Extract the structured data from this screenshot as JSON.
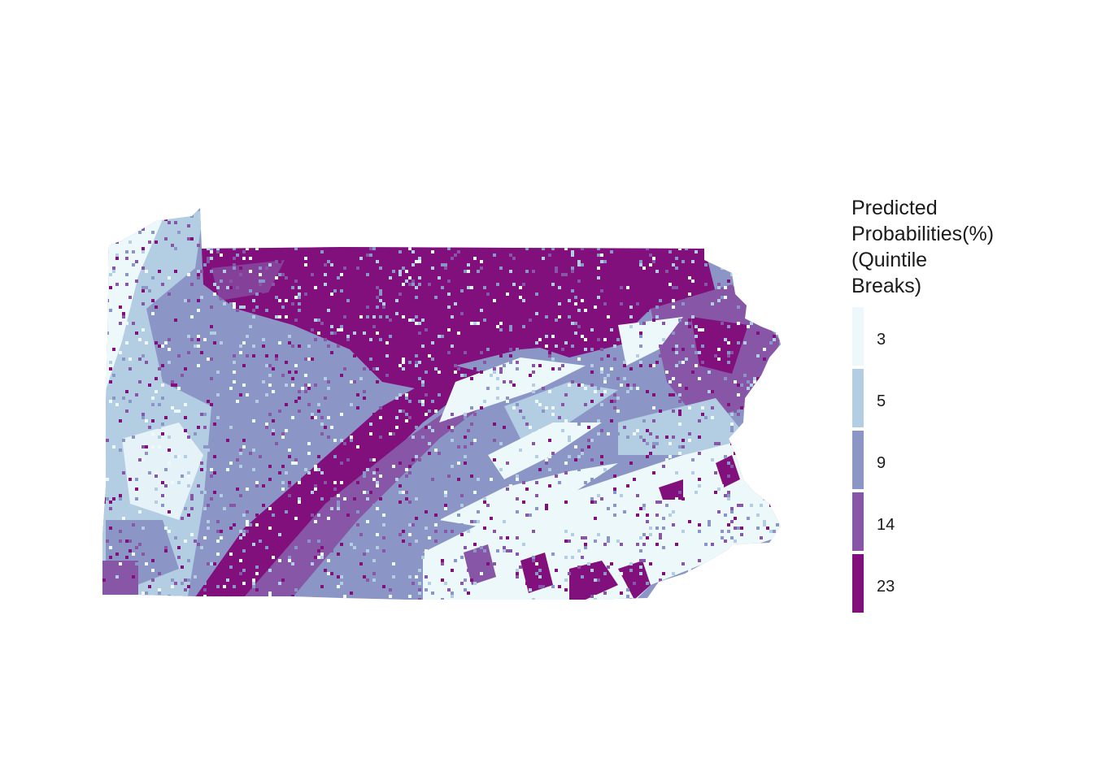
{
  "map": {
    "region": "Pennsylvania",
    "cell_style": "raster"
  },
  "legend": {
    "title_lines": [
      "Predicted",
      "Probabilities(%)",
      "(Quintile",
      "Breaks)"
    ],
    "classes": [
      {
        "label": "3",
        "color": "#edf8fb"
      },
      {
        "label": "5",
        "color": "#b3cde3"
      },
      {
        "label": "9",
        "color": "#8c96c6"
      },
      {
        "label": "14",
        "color": "#8856a7"
      },
      {
        "label": "23",
        "color": "#810f7c"
      }
    ]
  }
}
